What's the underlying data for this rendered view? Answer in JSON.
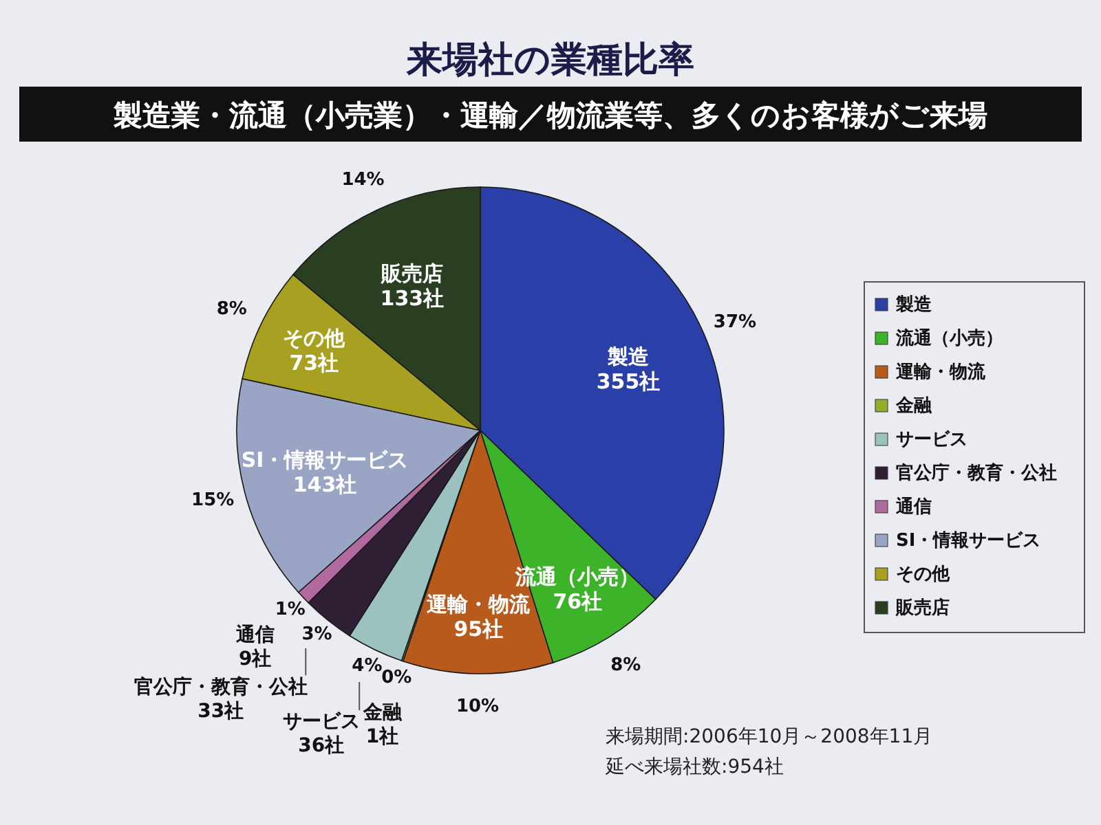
{
  "chart_data": {
    "type": "pie",
    "title": "来場社の業種比率",
    "subtitle": "製造業・流通（小売業）・運輸／物流業等、多くのお客様がご来場",
    "categories": [
      "製造",
      "流通（小売）",
      "運輸・物流",
      "金融",
      "サービス",
      "官公庁・教育・公社",
      "通信",
      "SI・情報サービス",
      "その他",
      "販売店"
    ],
    "values": [
      355,
      76,
      95,
      1,
      36,
      33,
      9,
      143,
      73,
      133
    ],
    "value_labels": [
      "355社",
      "76社",
      "95社",
      "1社",
      "36社",
      "33社",
      "9社",
      "143社",
      "73社",
      "133社"
    ],
    "colors": [
      "#2b3fa8",
      "#3db32a",
      "#b85a1c",
      "#8fae2a",
      "#9cc2c0",
      "#2e1f35",
      "#b06a9e",
      "#9aa4c4",
      "#a8a020",
      "#2a3f22"
    ],
    "legend": "right",
    "annotations": [
      {
        "text": "37%",
        "x": "製造"
      },
      {
        "text": "8%",
        "x": "流通（小売）"
      },
      {
        "text": "10%",
        "x": "運輸・物流"
      },
      {
        "text": "0%",
        "x": "金融"
      },
      {
        "text": "4%",
        "x": "サービス"
      },
      {
        "text": "3%",
        "x": "官公庁・教育・公社"
      },
      {
        "text": "1%",
        "x": "通信"
      },
      {
        "text": "15%",
        "x": "SI・情報サービス"
      },
      {
        "text": "8%",
        "x": "その他"
      },
      {
        "text": "14%",
        "x": "販売店"
      },
      "来場期間:2006年10月～2008年11月",
      "延べ来場社数:954社"
    ]
  }
}
